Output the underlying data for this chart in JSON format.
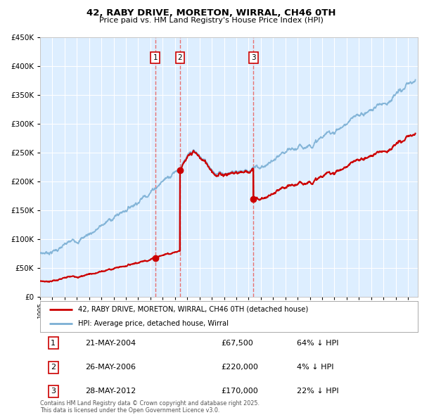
{
  "title": "42, RABY DRIVE, MORETON, WIRRAL, CH46 0TH",
  "subtitle": "Price paid vs. HM Land Registry's House Price Index (HPI)",
  "sale_prices": [
    67500,
    220000,
    170000
  ],
  "sale_labels": [
    "1",
    "2",
    "3"
  ],
  "legend_line1": "42, RABY DRIVE, MORETON, WIRRAL, CH46 0TH (detached house)",
  "legend_line2": "HPI: Average price, detached house, Wirral",
  "table_rows": [
    [
      "1",
      "21-MAY-2004",
      "£67,500",
      "64% ↓ HPI"
    ],
    [
      "2",
      "26-MAY-2006",
      "£220,000",
      "4% ↓ HPI"
    ],
    [
      "3",
      "28-MAY-2012",
      "£170,000",
      "22% ↓ HPI"
    ]
  ],
  "footnote": "Contains HM Land Registry data © Crown copyright and database right 2025.\nThis data is licensed under the Open Government Licence v3.0.",
  "red_color": "#cc0000",
  "blue_color": "#7bafd4",
  "dashed_color": "#e87070",
  "plot_bg_color": "#ddeeff",
  "grid_color": "#ffffff",
  "ylim": [
    0,
    450000
  ],
  "xlim_start": 1995.0,
  "xlim_end": 2025.8
}
